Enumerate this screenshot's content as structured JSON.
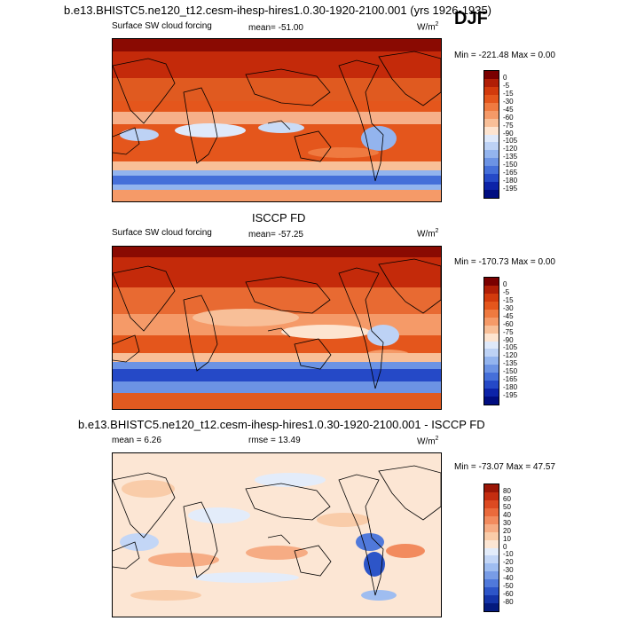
{
  "figure": {
    "main_title": "b.e13.BHISTC5.ne120_t12.cesm-ihesp-hires1.0.30-1920-2100.001 (yrs 1926-1935)",
    "season": "DJF",
    "units_base": "W/m",
    "units_exp": "2"
  },
  "chart_data": [
    {
      "type": "heatmap",
      "panel_title": "",
      "left_label": "Surface SW cloud forcing",
      "mean_label": "mean= -51.00",
      "minmax_label": "Min = -221.48 Max =   0.00",
      "stats": {
        "mean": -51.0,
        "min": -221.48,
        "max": 0.0
      },
      "colorbar_levels": [
        "0",
        "-5",
        "-15",
        "-30",
        "-45",
        "-60",
        "-75",
        "-90",
        "-105",
        "-120",
        "-135",
        "-150",
        "-165",
        "-180",
        "-195"
      ],
      "colorbar_colors": [
        "#7a0000",
        "#b01e06",
        "#d23a0c",
        "#e4561c",
        "#ef7a40",
        "#f59a68",
        "#f8bf98",
        "#fde4d0",
        "#dfe9fa",
        "#bdd2f5",
        "#93b4ee",
        "#6c93e4",
        "#456fd9",
        "#2549c7",
        "#0c23a8",
        "#000d80"
      ]
    },
    {
      "type": "heatmap",
      "panel_title": "ISCCP FD",
      "left_label": "Surface SW cloud forcing",
      "mean_label": "mean= -57.25",
      "minmax_label": "Min = -170.73 Max =   0.00",
      "stats": {
        "mean": -57.25,
        "min": -170.73,
        "max": 0.0
      },
      "colorbar_levels": [
        "0",
        "-5",
        "-15",
        "-30",
        "-45",
        "-60",
        "-75",
        "-90",
        "-105",
        "-120",
        "-135",
        "-150",
        "-165",
        "-180",
        "-195"
      ],
      "colorbar_colors": [
        "#7a0000",
        "#b01e06",
        "#d23a0c",
        "#e4561c",
        "#ef7a40",
        "#f59a68",
        "#f8bf98",
        "#fde4d0",
        "#dfe9fa",
        "#bdd2f5",
        "#93b4ee",
        "#6c93e4",
        "#456fd9",
        "#2549c7",
        "#0c23a8",
        "#000d80"
      ]
    },
    {
      "type": "heatmap",
      "panel_title": "b.e13.BHISTC5.ne120_t12.cesm-ihesp-hires1.0.30-1920-2100.001 - ISCCP FD",
      "left_label": "mean =   6.26",
      "mean_label": "rmse =  13.49",
      "minmax_label": "Min = -73.07 Max =  47.57",
      "stats": {
        "mean": 6.26,
        "rmse": 13.49,
        "min": -73.07,
        "max": 47.57
      },
      "colorbar_levels": [
        "80",
        "60",
        "50",
        "40",
        "30",
        "20",
        "10",
        "0",
        "-10",
        "-20",
        "-30",
        "-40",
        "-50",
        "-60",
        "-80"
      ],
      "colorbar_colors": [
        "#9a1606",
        "#c42d10",
        "#dc4a22",
        "#ea6a3c",
        "#f28b5e",
        "#f6ac84",
        "#f9cca9",
        "#fce6d4",
        "#e3ecfa",
        "#c3d6f6",
        "#9fbdf0",
        "#789ce6",
        "#5079db",
        "#2d55c8",
        "#1434a8",
        "#041a7e"
      ]
    }
  ]
}
